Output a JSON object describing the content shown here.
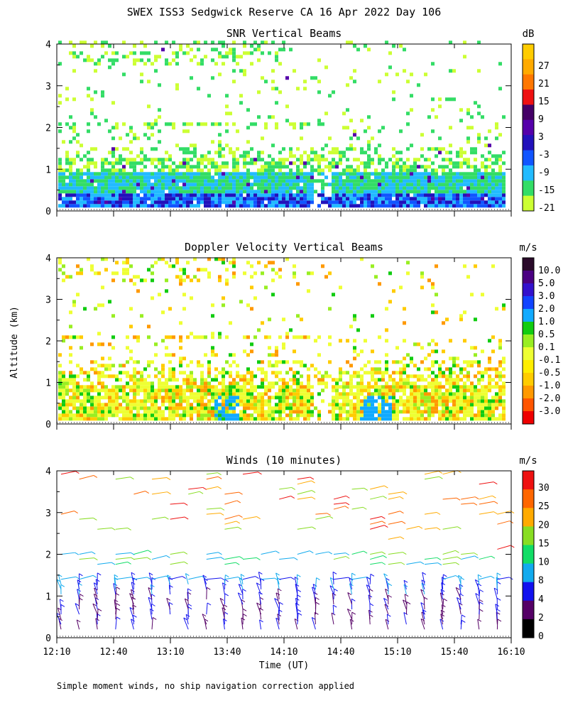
{
  "figure": {
    "title": "SWEX ISS3 Sedgwick Reserve CA  16 Apr 2022 Day 106",
    "ylabel": "Altitude (km)",
    "xlabel": "Time (UT)",
    "footnote": "Simple moment winds, no ship navigation correction applied"
  },
  "chart_data": [
    {
      "type": "heatmap",
      "title": "SNR Vertical Beams",
      "xlabel": "Time (UT)",
      "ylabel": "Altitude (km)",
      "xlim": [
        "12:10",
        "16:10"
      ],
      "ylim": [
        0,
        4
      ],
      "x_ticks": [
        "12:10",
        "12:40",
        "13:10",
        "13:40",
        "14:10",
        "14:40",
        "15:10",
        "15:40",
        "16:10"
      ],
      "y_ticks": [
        0,
        1,
        2,
        3,
        4
      ],
      "colorbar": {
        "unit": "dB",
        "labels": [
          "-21",
          "-15",
          "-9",
          "-3",
          "3",
          "9",
          "15",
          "21",
          "27"
        ],
        "colors": [
          "#ccff33",
          "#33dd66",
          "#22bbff",
          "#1155ff",
          "#2211bb",
          "#5500aa",
          "#440066",
          "#ee1111",
          "#ff7700",
          "#ffaa00",
          "#ffcc00"
        ]
      }
    },
    {
      "type": "heatmap",
      "title": "Doppler Velocity Vertical Beams",
      "xlabel": "Time (UT)",
      "ylabel": "Altitude (km)",
      "xlim": [
        "12:10",
        "16:10"
      ],
      "ylim": [
        0,
        4
      ],
      "x_ticks": [
        "12:10",
        "12:40",
        "13:10",
        "13:40",
        "14:10",
        "14:40",
        "15:10",
        "15:40",
        "16:10"
      ],
      "y_ticks": [
        0,
        1,
        2,
        3,
        4
      ],
      "colorbar": {
        "unit": "m/s",
        "labels": [
          "10.0",
          "5.0",
          "3.0",
          "2.0",
          "1.0",
          "0.5",
          "0.1",
          "-0.1",
          "-0.5",
          "-1.0",
          "-2.0",
          "-3.0"
        ],
        "colors": [
          "#2a0a2a",
          "#4b0082",
          "#3311cc",
          "#1144ff",
          "#11aaff",
          "#11cc11",
          "#99ee22",
          "#eeff33",
          "#ffee00",
          "#ffcc00",
          "#ff9900",
          "#ff5500",
          "#ee0000"
        ]
      }
    },
    {
      "type": "barbs",
      "title": "Winds (10 minutes)",
      "xlabel": "Time (UT)",
      "ylabel": "Altitude (km)",
      "xlim": [
        "12:10",
        "16:10"
      ],
      "ylim": [
        0,
        4
      ],
      "x_ticks": [
        "12:10",
        "12:40",
        "13:10",
        "13:40",
        "14:10",
        "14:40",
        "15:10",
        "15:40",
        "16:10"
      ],
      "y_ticks": [
        0,
        1,
        2,
        3,
        4
      ],
      "colorbar": {
        "unit": "m/s",
        "labels": [
          "0",
          "2",
          "4",
          "8",
          "10",
          "15",
          "20",
          "25",
          "30"
        ],
        "colors": [
          "#000000",
          "#550066",
          "#1111ee",
          "#11aaee",
          "#11dd66",
          "#88dd22",
          "#ffaa00",
          "#ff6600",
          "#ee1111"
        ]
      }
    }
  ]
}
